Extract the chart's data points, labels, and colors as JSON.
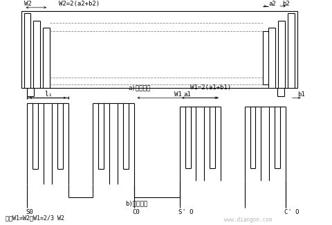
{
  "lc": "#000000",
  "dc": "#888888",
  "wm_color": "#b8b8b8",
  "lw": 0.8,
  "lwd": 0.6,
  "fs": 6.5,
  "top_label": "a)定尺绕组",
  "bot_label": "b)滑尺绕组",
  "bottom_text": "一般W1=W2或W1=2/3 W2",
  "watermark": "www.diangon.com",
  "T_xl": 28,
  "T_xr": 430,
  "T_yb": 35,
  "T_yt": 118,
  "B_xl": 28,
  "B_xr": 455,
  "B_yb": 165,
  "B_yt": 265
}
